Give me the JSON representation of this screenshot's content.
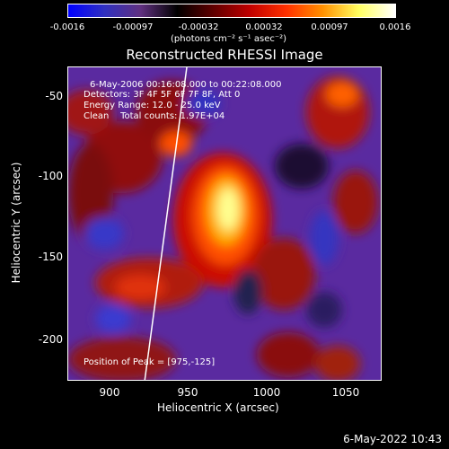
{
  "colorbar": {
    "tick_labels": [
      "-0.0016",
      "-0.00097",
      "-0.00032",
      "0.00032",
      "0.00097",
      "0.0016"
    ],
    "units": "(photons cm⁻² s⁻¹ asec⁻²)",
    "colors": [
      "#0000ff",
      "#3030c0",
      "#603080",
      "#000000",
      "#600000",
      "#c00000",
      "#ff3000",
      "#ff9000",
      "#ffff60",
      "#ffffff"
    ]
  },
  "title": "Reconstructed RHESSI Image",
  "annotations": {
    "time_range": "6-May-2006 00:16:08.000 to 00:22:08.000",
    "detectors": "Detectors: 3F 4F 5F 6F 7F 8F, Att 0",
    "energy_range": "Energy Range: 12.0 - 25.0 keV",
    "clean": "Clean    Total counts: 1.97E+04",
    "peak": "Position of Peak = [975,-125]"
  },
  "axes": {
    "xlabel": "Heliocentric X (arcsec)",
    "ylabel": "Heliocentric Y (arcsec)",
    "xticks": [
      "900",
      "950",
      "1000",
      "1050"
    ],
    "yticks": [
      "-50",
      "-100",
      "-150",
      "-200"
    ]
  },
  "timestamp": "6-May-2022 10:43"
}
